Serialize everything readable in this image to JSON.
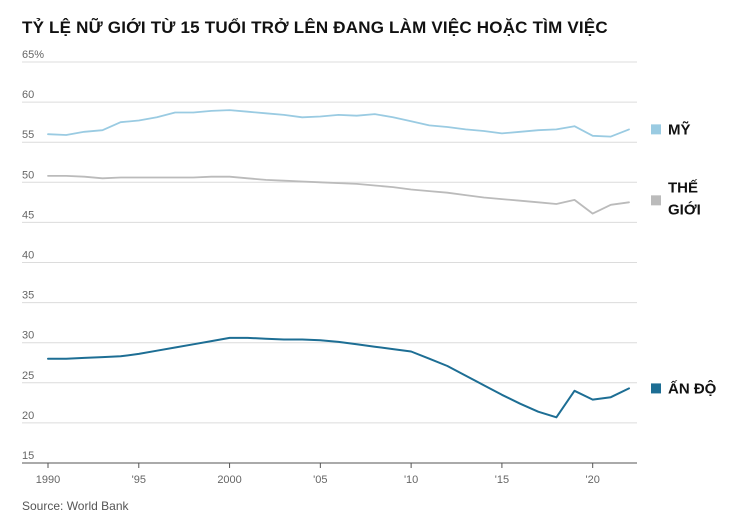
{
  "title": "TỶ LỆ NỮ GIỚI TỪ 15 TUỔI TRỞ LÊN ĐANG LÀM VIỆC HOẶC TÌM VIỆC",
  "source": "Source: World Bank",
  "chart_data": {
    "type": "line",
    "title": "TỶ LỆ NỮ GIỚI TỪ 15 TUỔI TRỞ LÊN ĐANG LÀM VIỆC HOẶC TÌM VIỆC",
    "xlabel": "",
    "ylabel": "",
    "xlim": [
      1990,
      2022
    ],
    "ylim": [
      15,
      65
    ],
    "y_ticks": [
      15,
      20,
      25,
      30,
      35,
      40,
      45,
      50,
      55,
      60,
      65
    ],
    "y_tick_labels": [
      "15",
      "20",
      "25",
      "30",
      "35",
      "40",
      "45",
      "50",
      "55",
      "60",
      "65%"
    ],
    "x_ticks": [
      1990,
      1995,
      2000,
      2005,
      2010,
      2015,
      2020
    ],
    "x_tick_labels": [
      "1990",
      "'95",
      "2000",
      "'05",
      "'10",
      "'15",
      "'20"
    ],
    "grid": true,
    "legend_placement": "right, next to line ends",
    "x": [
      1990,
      1991,
      1992,
      1993,
      1994,
      1995,
      1996,
      1997,
      1998,
      1999,
      2000,
      2001,
      2002,
      2003,
      2004,
      2005,
      2006,
      2007,
      2008,
      2009,
      2010,
      2011,
      2012,
      2013,
      2014,
      2015,
      2016,
      2017,
      2018,
      2019,
      2020,
      2021,
      2022
    ],
    "series": [
      {
        "name": "MỸ",
        "color": "#9acbe2",
        "values": [
          56.0,
          55.9,
          56.3,
          56.5,
          57.5,
          57.7,
          58.1,
          58.7,
          58.7,
          58.9,
          59.0,
          58.8,
          58.6,
          58.4,
          58.1,
          58.2,
          58.4,
          58.3,
          58.5,
          58.1,
          57.6,
          57.1,
          56.9,
          56.6,
          56.4,
          56.1,
          56.3,
          56.5,
          56.6,
          57.0,
          55.8,
          55.7,
          56.6
        ]
      },
      {
        "name": "THẾ GIỚI",
        "color": "#bbbbbb",
        "values": [
          50.8,
          50.8,
          50.7,
          50.5,
          50.6,
          50.6,
          50.6,
          50.6,
          50.6,
          50.7,
          50.7,
          50.5,
          50.3,
          50.2,
          50.1,
          50.0,
          49.9,
          49.8,
          49.6,
          49.4,
          49.1,
          48.9,
          48.7,
          48.4,
          48.1,
          47.9,
          47.7,
          47.5,
          47.3,
          47.8,
          46.1,
          47.2,
          47.5
        ]
      },
      {
        "name": "ẤN ĐỘ",
        "color": "#1d6e94",
        "values": [
          28.0,
          28.0,
          28.1,
          28.2,
          28.3,
          28.6,
          29.0,
          29.4,
          29.8,
          30.2,
          30.6,
          30.6,
          30.5,
          30.4,
          30.4,
          30.3,
          30.1,
          29.8,
          29.5,
          29.2,
          28.9,
          28.0,
          27.1,
          25.9,
          24.7,
          23.5,
          22.4,
          21.4,
          20.7,
          24.0,
          22.9,
          23.2,
          24.3
        ]
      }
    ]
  }
}
